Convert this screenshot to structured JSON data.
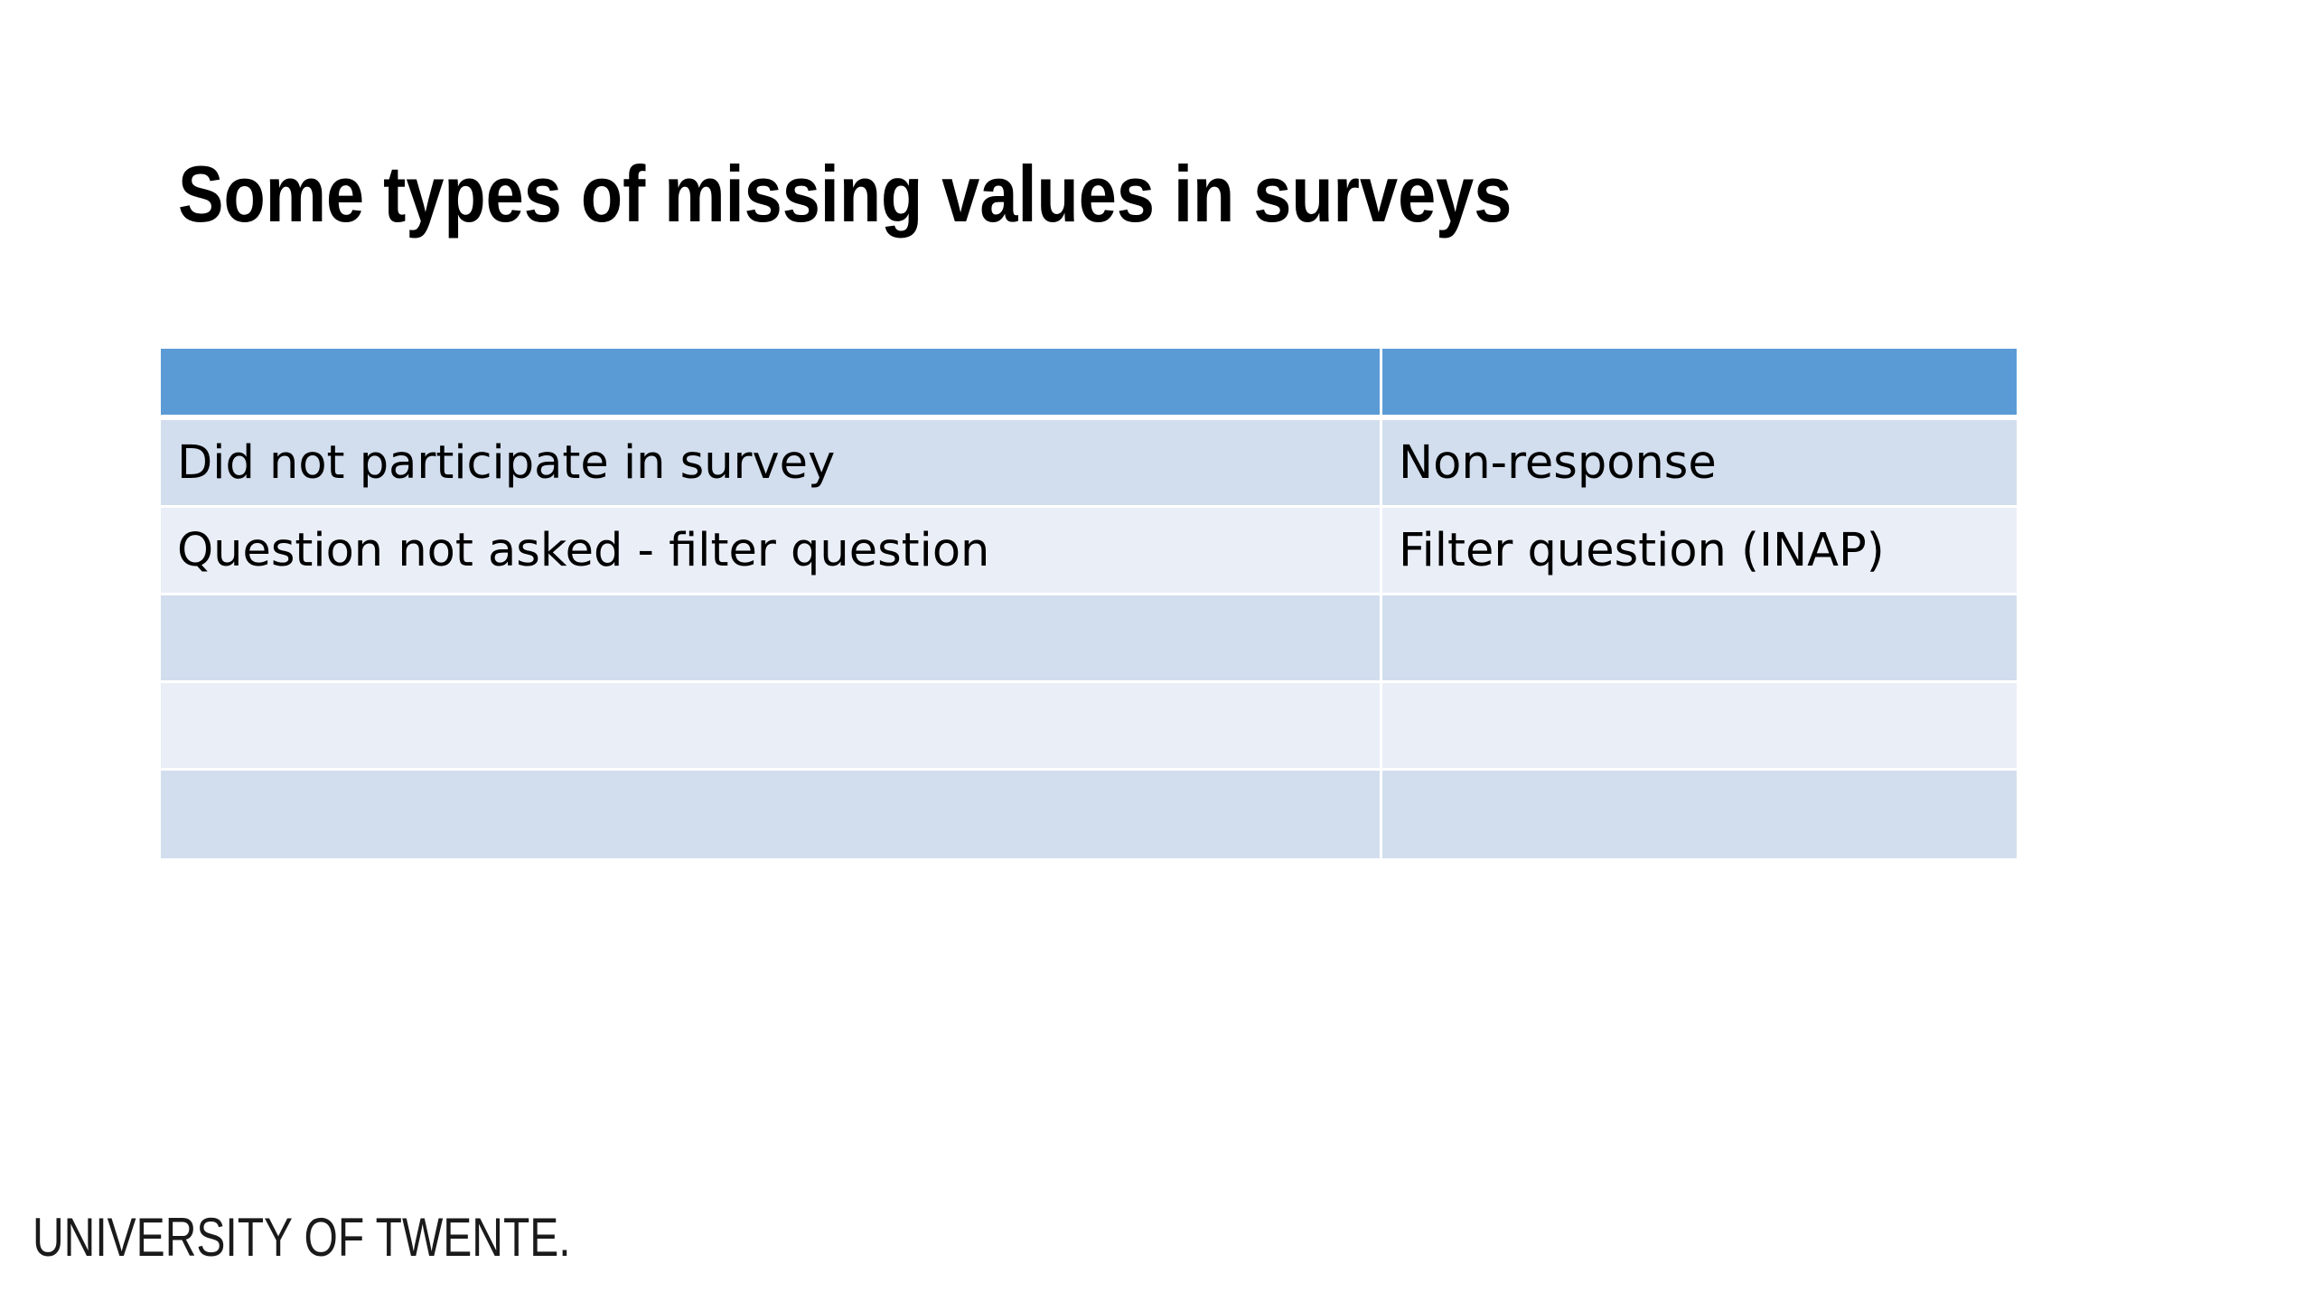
{
  "slide": {
    "title": "Some types of missing values in surveys",
    "logo_text": "UNIVERSITY OF TWENTE."
  },
  "table": {
    "header": [
      "",
      ""
    ],
    "rows": [
      [
        "Did not participate in survey",
        "Non-response"
      ],
      [
        "Question not asked - filter question",
        "Filter question (INAP)"
      ],
      [
        "",
        ""
      ],
      [
        "",
        ""
      ],
      [
        "",
        ""
      ]
    ],
    "colors": {
      "header": "#5b9bd5",
      "row_odd": "#d2deee",
      "row_even": "#eaeef7"
    }
  }
}
